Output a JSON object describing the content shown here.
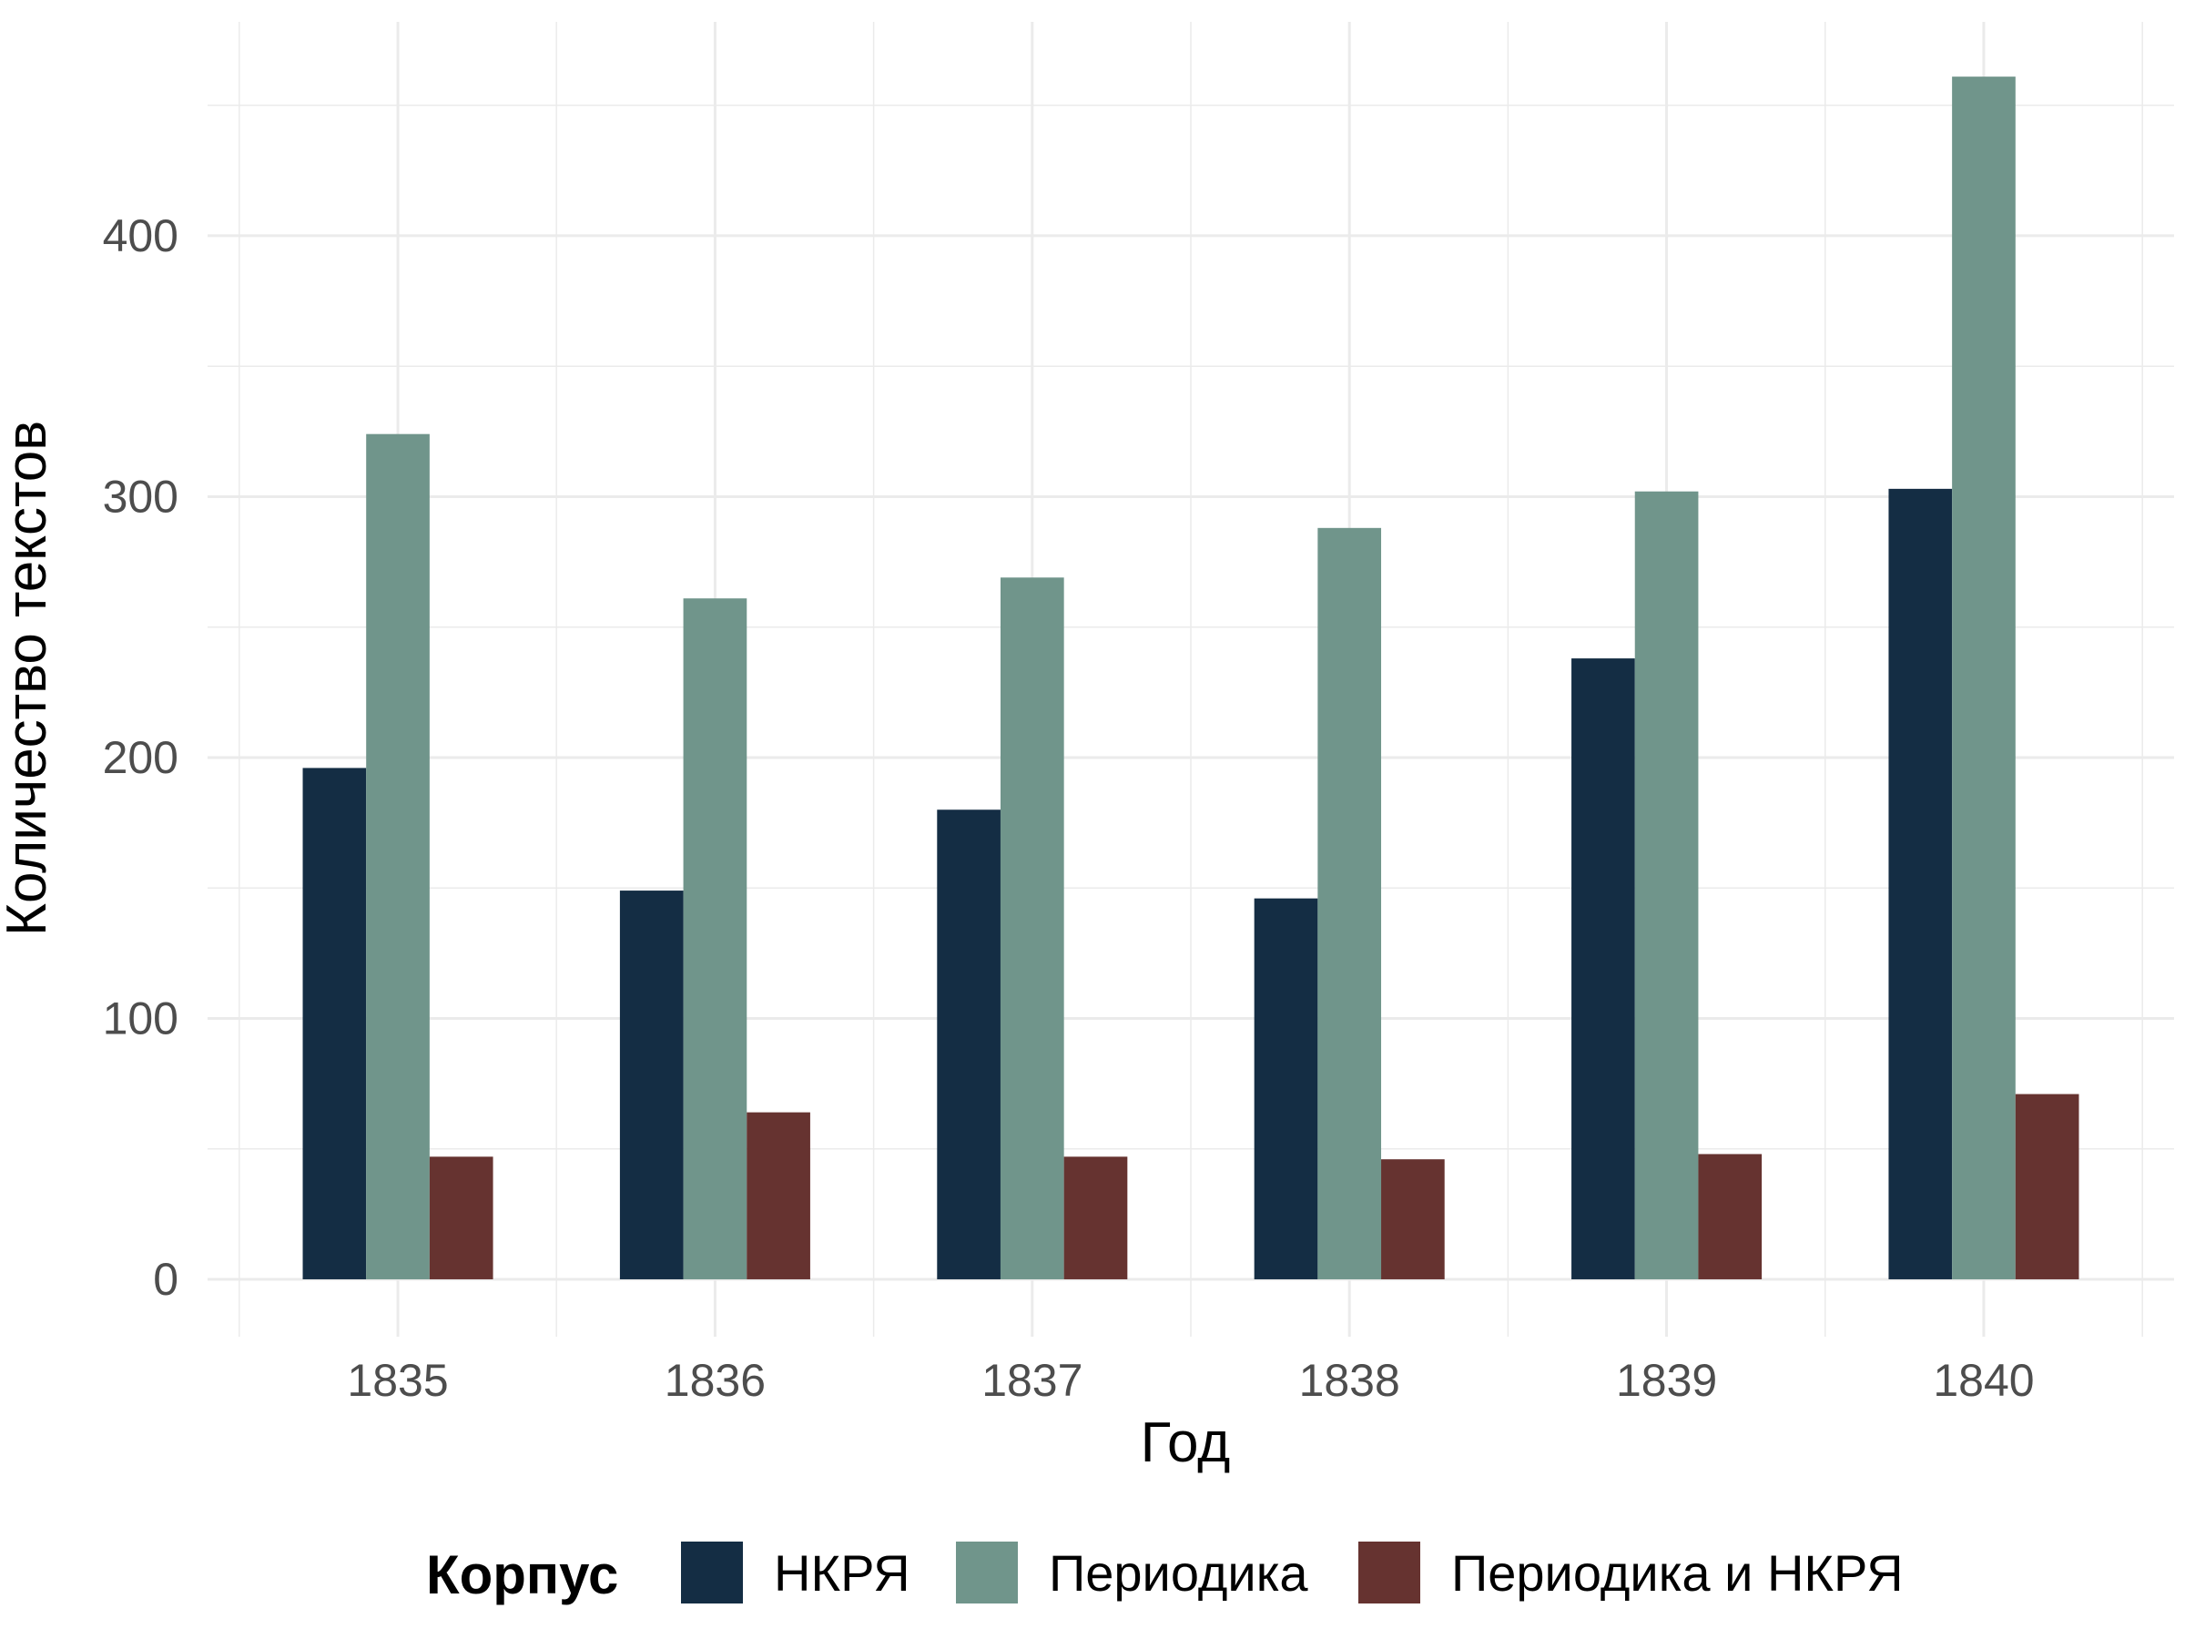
{
  "chart_data": {
    "type": "bar",
    "title": "",
    "xlabel": "Год",
    "ylabel": "Количество текстов",
    "categories": [
      "1835",
      "1836",
      "1837",
      "1838",
      "1839",
      "1840"
    ],
    "series": [
      {
        "name": "НКРЯ",
        "color": "#142d44",
        "values": [
          196,
          149,
          180,
          146,
          238,
          303
        ]
      },
      {
        "name": "Периодика",
        "color": "#70958b",
        "values": [
          324,
          261,
          269,
          288,
          302,
          461
        ]
      },
      {
        "name": "Периодика и НКРЯ",
        "color": "#663330",
        "values": [
          47,
          64,
          47,
          46,
          48,
          71
        ]
      }
    ],
    "ylim": [
      -22,
      482
    ],
    "yticks": [
      0,
      100,
      200,
      300,
      400
    ],
    "yticks_minor": [
      50,
      150,
      250,
      350,
      450
    ],
    "grid": true,
    "legend": {
      "title": "Корпус",
      "position": "bottom"
    }
  }
}
